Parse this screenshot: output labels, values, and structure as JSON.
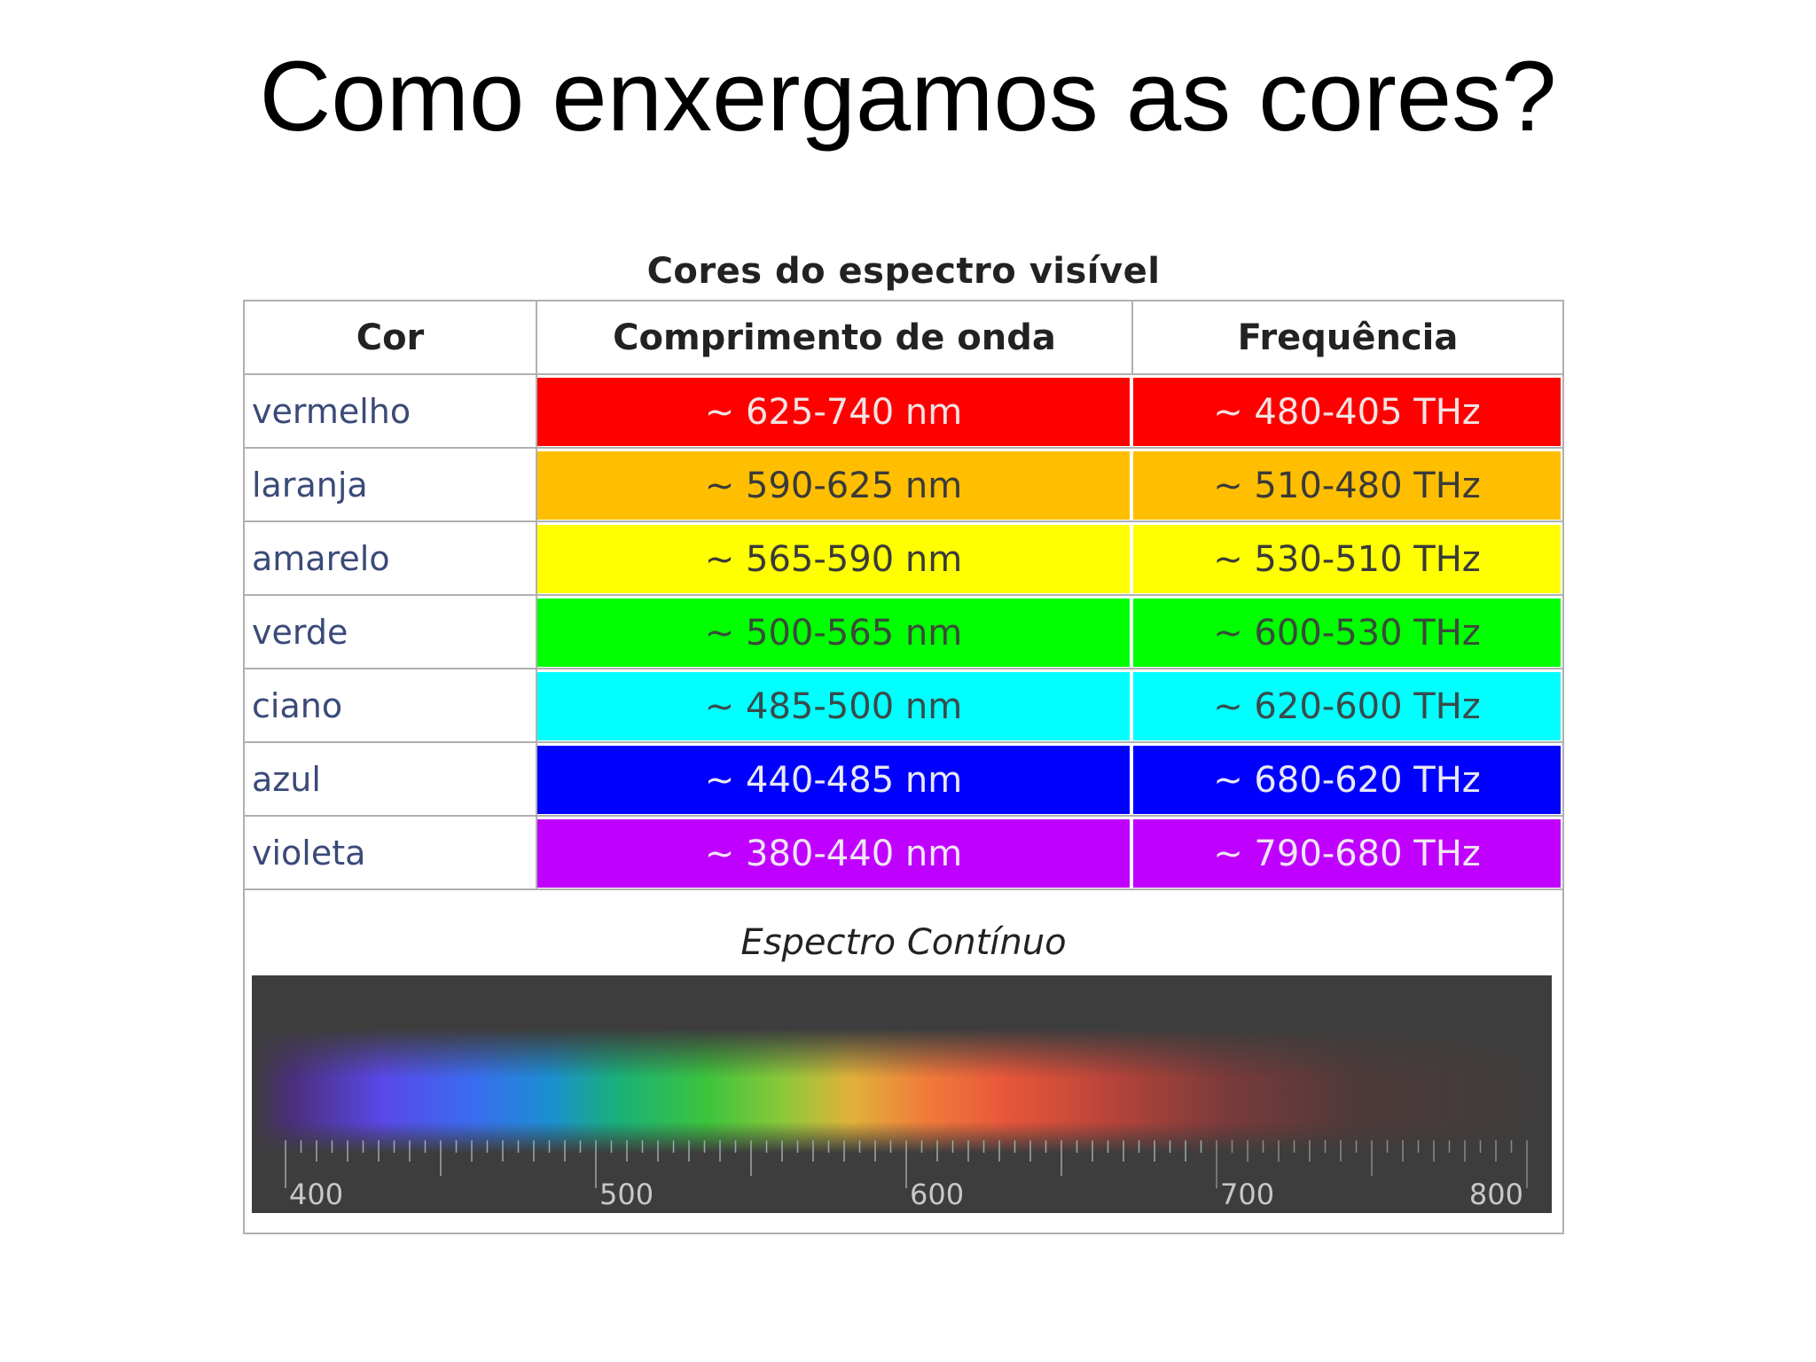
{
  "slide": {
    "title": "Como enxergamos as cores?"
  },
  "table": {
    "caption": "Cores do espectro visível",
    "headers": [
      "Cor",
      "Comprimento de onda",
      "Frequência"
    ],
    "rows": [
      {
        "name": "vermelho",
        "wavelength": "~ 625-740 nm",
        "frequency": "~ 480-405 THz",
        "color": "#ff0000",
        "text_color": "#f2e4e4",
        "freq_unit_color": "#7a1a66"
      },
      {
        "name": "laranja",
        "wavelength": "~ 590-625 nm",
        "frequency": "~ 510-480 THz",
        "color": "#ffbf00",
        "text_color": "#3a3a3a",
        "freq_unit_color": "#3a3a3a"
      },
      {
        "name": "amarelo",
        "wavelength": "~ 565-590 nm",
        "frequency": "~ 530-510 THz",
        "color": "#ffff00",
        "text_color": "#3a3a3a",
        "freq_unit_color": "#3a3a3a"
      },
      {
        "name": "verde",
        "wavelength": "~ 500-565 nm",
        "frequency": "~ 600-530 THz",
        "color": "#00ff00",
        "text_color": "#3a4a3a",
        "freq_unit_color": "#3a4a3a"
      },
      {
        "name": "ciano",
        "wavelength": "~ 485-500 nm",
        "frequency": "~ 620-600 THz",
        "color": "#00ffff",
        "text_color": "#3a4a4a",
        "freq_unit_color": "#3a4a4a"
      },
      {
        "name": "azul",
        "wavelength": "~ 440-485 nm",
        "frequency": "~ 680-620 THz",
        "color": "#0000ff",
        "text_color": "#e8e8f4",
        "freq_unit_color": "#e8e8f4"
      },
      {
        "name": "violeta",
        "wavelength": "~ 380-440 nm",
        "frequency": "~ 790-680 THz",
        "color": "#bf00ff",
        "text_color": "#f0e6f4",
        "freq_unit_color": "#6a28c8"
      }
    ]
  },
  "spectrum": {
    "label": "Espectro Contínuo",
    "axis_ticks": [
      "400",
      "500",
      "600",
      "700",
      "800"
    ],
    "axis_range_nm": [
      400,
      800
    ],
    "background_color": "#3d3d3d"
  }
}
